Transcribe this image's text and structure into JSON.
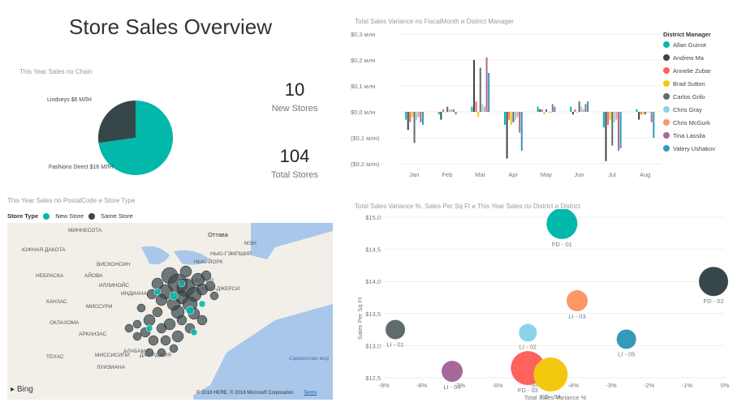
{
  "title": "Store Sales Overview",
  "pie": {
    "caption": "This Year Sales по Chain",
    "slices": [
      {
        "label": "Lindseys $6 МЛН",
        "value": 6,
        "color": "#374649"
      },
      {
        "label": "Fashions Direct $16 МЛН",
        "value": 16,
        "color": "#01b8aa"
      }
    ]
  },
  "kpis": [
    {
      "value": "10",
      "label": "New Stores"
    },
    {
      "value": "104",
      "label": "Total Stores"
    }
  ],
  "variance_chart": {
    "caption": "Total Sales Variance по FiscalMonth и District Manager",
    "legend_title": "District Manager",
    "y_ticks": [
      "$0,3 млн",
      "$0,2 млн",
      "$0,1 млн",
      "$0,0 млн",
      "($0,1 млн)",
      "($0,2 млн)"
    ],
    "chart_data": {
      "type": "bar",
      "categories": [
        "Jan",
        "Feb",
        "Mar",
        "Apr",
        "May",
        "Jun",
        "Jul",
        "Aug"
      ],
      "ylim": [
        -0.2,
        0.3
      ],
      "series": [
        {
          "name": "Allan Guinot",
          "color": "#01b8aa",
          "values": [
            -0.03,
            -0.01,
            0.02,
            -0.05,
            0.02,
            0.02,
            -0.06,
            0.01
          ]
        },
        {
          "name": "Andrew Ma",
          "color": "#374649",
          "values": [
            -0.07,
            -0.03,
            0.2,
            -0.18,
            0.01,
            -0.01,
            -0.19,
            -0.03
          ]
        },
        {
          "name": "Annelie Zubar",
          "color": "#fd625e",
          "values": [
            -0.04,
            0.01,
            0.04,
            -0.03,
            0.01,
            0.01,
            -0.05,
            -0.01
          ]
        },
        {
          "name": "Brad Sutton",
          "color": "#f2c80f",
          "values": [
            -0.02,
            0.0,
            -0.02,
            -0.05,
            -0.01,
            0.0,
            -0.03,
            -0.01
          ]
        },
        {
          "name": "Carlos Grilo",
          "color": "#5f6b6d",
          "values": [
            -0.12,
            0.02,
            0.17,
            -0.04,
            0.01,
            0.04,
            -0.13,
            -0.01
          ]
        },
        {
          "name": "Chris Gray",
          "color": "#8ad4eb",
          "values": [
            -0.03,
            0.01,
            0.03,
            -0.03,
            0.0,
            0.02,
            -0.04,
            0.0
          ]
        },
        {
          "name": "Chris McGurk",
          "color": "#fe9666",
          "values": [
            -0.02,
            0.01,
            0.02,
            -0.02,
            0.0,
            0.01,
            -0.03,
            0.0
          ]
        },
        {
          "name": "Tina Lassila",
          "color": "#a66999",
          "values": [
            -0.04,
            0.01,
            0.21,
            -0.08,
            0.03,
            0.03,
            -0.15,
            -0.04
          ]
        },
        {
          "name": "Valery Ushakov",
          "color": "#3599b8",
          "values": [
            -0.05,
            -0.01,
            0.15,
            -0.15,
            0.02,
            0.04,
            -0.14,
            -0.1
          ]
        }
      ]
    }
  },
  "map": {
    "caption": "This Year Sales по PostalCode и Store Type",
    "legend_title": "Store Type",
    "legend": [
      {
        "label": "New Store",
        "color": "#01b8aa"
      },
      {
        "label": "Same Store",
        "color": "#374649"
      }
    ],
    "labels": [
      "МИННЕСОТА",
      "ЮЖНАЯ ДАКОТА",
      "ВИСКОНСИН",
      "НЕБРАСКА",
      "АЙОВА",
      "ИЛЛИНОЙС",
      "ИНДИАНА",
      "КАНЗАС",
      "МИССУРИ",
      "ОКЛАХОМА",
      "АРКАНЗАС",
      "ТЕХАС",
      "МИССИСИПИ",
      "АЛАБАМА",
      "ДЖОРДЖИЯ",
      "ЛУИЗИАНА",
      "Оттава",
      "МЭН",
      "НЬЮ-ГЭМПШИР",
      "НЬЮ-ЙОРК",
      "ПЕНСИЛЬВАНИЯ",
      "НЬЮ-ДЖЕРСИ",
      "Саргассово мор"
    ],
    "attribution": "© 2018 HERE, © 2018 Microsoft Corporation",
    "terms": "Terms",
    "bing": "Bing"
  },
  "bubble_chart": {
    "caption": "Total Sales Variance %, Sales Per Sq Ft и This Year Sales по District и District",
    "x_label": "Total Sales Variance %",
    "y_label": "Sales Per Sq Ft",
    "x_ticks": [
      "-9%",
      "-8%",
      "-7%",
      "-6%",
      "-5%",
      "-4%",
      "-3%",
      "-2%",
      "-1%",
      "0%"
    ],
    "y_ticks": [
      "$15,0",
      "$14,5",
      "$14,0",
      "$13,5",
      "$13,0",
      "$12,5"
    ],
    "chart_data": {
      "type": "scatter",
      "xlim": [
        -9,
        0
      ],
      "ylim": [
        12.5,
        15.0
      ],
      "points": [
        {
          "label": "FD - 01",
          "x": -4.3,
          "y": 14.9,
          "size": 19,
          "color": "#01b8aa"
        },
        {
          "label": "FD - 02",
          "x": -0.3,
          "y": 14.0,
          "size": 18,
          "color": "#374649"
        },
        {
          "label": "LI - 03",
          "x": -3.9,
          "y": 13.7,
          "size": 13,
          "color": "#fe9666"
        },
        {
          "label": "LI - 01",
          "x": -8.7,
          "y": 13.25,
          "size": 12,
          "color": "#5f6b6d"
        },
        {
          "label": "LI - 02",
          "x": -5.2,
          "y": 13.2,
          "size": 11,
          "color": "#8ad4eb"
        },
        {
          "label": "LI - 05",
          "x": -2.6,
          "y": 13.1,
          "size": 12,
          "color": "#3599b8"
        },
        {
          "label": "LI - 04",
          "x": -7.2,
          "y": 12.6,
          "size": 13,
          "color": "#a66999"
        },
        {
          "label": "FD - 03",
          "x": -5.2,
          "y": 12.65,
          "size": 21,
          "color": "#fd625e"
        },
        {
          "label": "FD - 04",
          "x": -4.6,
          "y": 12.55,
          "size": 21,
          "color": "#f2c80f"
        }
      ]
    }
  }
}
